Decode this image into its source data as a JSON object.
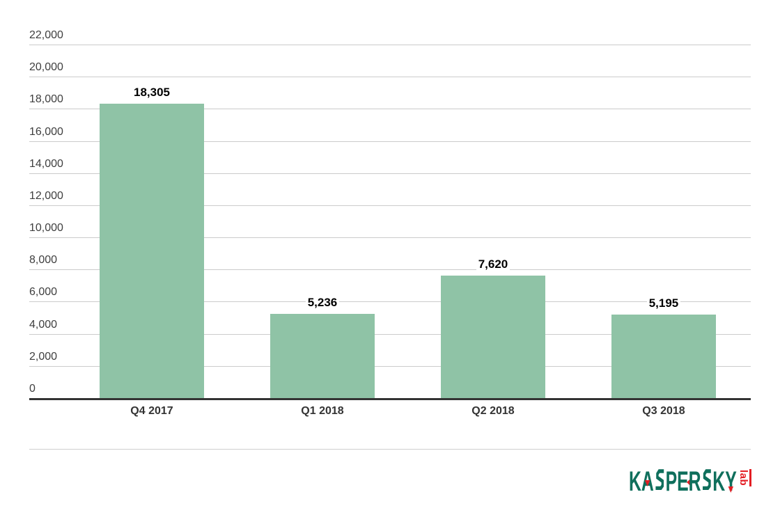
{
  "page": {
    "background": "#ffffff"
  },
  "chart_data": {
    "type": "bar",
    "title": "",
    "xlabel": "",
    "ylabel": "",
    "categories": [
      "Q4 2017",
      "Q1 2018",
      "Q2 2018",
      "Q3 2018"
    ],
    "values": [
      18305,
      5236,
      7620,
      5195
    ],
    "value_labels": [
      "18,305",
      "5,236",
      "7,620",
      "5,195"
    ],
    "ylim": [
      0,
      22000
    ],
    "ytick_interval": 2000,
    "yticks": [
      {
        "value": 22000,
        "label": "22,000"
      },
      {
        "value": 20000,
        "label": "20,000"
      },
      {
        "value": 18000,
        "label": "18,000"
      },
      {
        "value": 16000,
        "label": "16,000"
      },
      {
        "value": 14000,
        "label": "14,000"
      },
      {
        "value": 12000,
        "label": "12,000"
      },
      {
        "value": 10000,
        "label": "10,000"
      },
      {
        "value": 8000,
        "label": "8,000"
      },
      {
        "value": 6000,
        "label": "6,000"
      },
      {
        "value": 4000,
        "label": "4,000"
      },
      {
        "value": 2000,
        "label": "2,000"
      },
      {
        "value": 0,
        "label": "0"
      }
    ],
    "grid": "horizontal",
    "legend": "none",
    "bar_color": "#8fc3a6",
    "gridline_color": "#cbcbcb",
    "axis_line_color": "#333333",
    "tick_label_color": "#3e3e3e",
    "category_label_color": "#333333",
    "value_label_color": "#000000"
  },
  "branding": {
    "logo_text": "KASPERSKY",
    "logo_suffix": "lab",
    "logo_green": "#0f6f5c",
    "logo_red": "#e31e24"
  }
}
